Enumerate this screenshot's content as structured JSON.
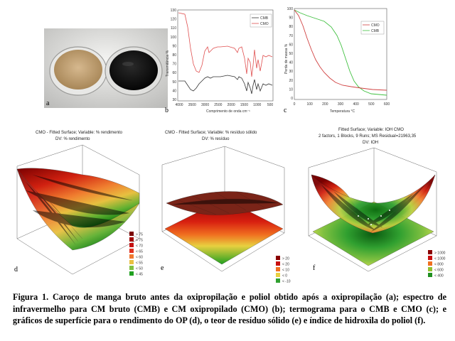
{
  "panels": {
    "a": {
      "letter": "a"
    },
    "b": {
      "letter": "b",
      "legend": [
        "CMB",
        "CMO"
      ],
      "ylabel": "Transmitância %",
      "xlabel": "Comprimento de onda cm⁻¹",
      "yticks": [
        "130",
        "120",
        "110",
        "100",
        "90",
        "80",
        "70",
        "60",
        "50",
        "40",
        "30"
      ],
      "xticks": [
        "4000",
        "3500",
        "3000",
        "2500",
        "2000",
        "1500",
        "1000",
        "500"
      ]
    },
    "c": {
      "letter": "c",
      "legend": [
        "CMO",
        "CMB"
      ],
      "ylabel": "Perda de massa %",
      "xlabel": "Temperatura °C",
      "yticks": [
        "100",
        "90",
        "80",
        "70",
        "60",
        "50",
        "40",
        "30",
        "20",
        "10",
        "0"
      ],
      "xticks": [
        "0",
        "100",
        "200",
        "300",
        "400",
        "500",
        "600"
      ]
    },
    "d": {
      "letter": "d",
      "title": "CMO - Fitted Surface; Variable: % rendimento",
      "subtitle": "DV: % rendimento",
      "legend": [
        "> 75",
        "< 75",
        "< 70",
        "< 65",
        "< 60",
        "< 55",
        "< 50",
        "< 45"
      ],
      "legend_colors": [
        "#7a0000",
        "#a00000",
        "#c41010",
        "#e03020",
        "#f07830",
        "#e8c040",
        "#80c040",
        "#20a020"
      ]
    },
    "e": {
      "letter": "e",
      "title": "CMO - Fitted Surface; Variable: % resíduo sólido",
      "subtitle": "DV: % resíduo",
      "legend": [
        "> 20",
        "< 20",
        "< 10",
        "< 0",
        "< -10"
      ],
      "legend_colors": [
        "#8a0000",
        "#c81010",
        "#f07020",
        "#e8d040",
        "#30a030"
      ]
    },
    "f": {
      "letter": "f",
      "title": "Fitted Surface; Variable: IOH CMO",
      "subtitle": "2 factors, 1 Blocks, 9 Runs; MS Residual=21963,35",
      "subtitle2": "DV: IOH",
      "legend": [
        "> 1000",
        "< 1000",
        "< 800",
        "< 600",
        "< 400"
      ],
      "legend_colors": [
        "#8a0000",
        "#c81010",
        "#f07020",
        "#90c030",
        "#209020"
      ]
    }
  },
  "caption": {
    "figure_label": "Figura 1.",
    "text": "Caroço de manga bruto antes da oxipropilação e poliol obtido após a oxipropilação (a); espectro de infravermelho para CM bruto (CMB) e CM oxipropilado (CMO) (b); termograma para o CMB e CMO (c); e gráficos de superfície para o rendimento do OP (d), o teor de resíduo sólido (e) e índice de hidroxila do poliol (f)."
  },
  "colors": {
    "cmb_line": "#333333",
    "cmo_line": "#e05050",
    "tga_cmb": "#40c040",
    "tga_cmo": "#d04040"
  }
}
